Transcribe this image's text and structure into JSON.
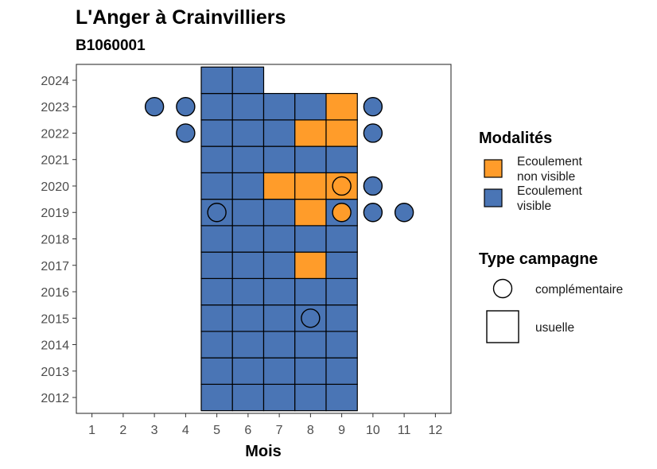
{
  "chart_data": {
    "type": "heatmap",
    "title": "L'Anger à Crainvilliers",
    "subtitle": "B1060001",
    "xlabel": "Mois",
    "ylabel": "",
    "x_ticks": [
      1,
      2,
      3,
      4,
      5,
      6,
      7,
      8,
      9,
      10,
      11,
      12
    ],
    "y_ticks": [
      2012,
      2013,
      2014,
      2015,
      2016,
      2017,
      2018,
      2019,
      2020,
      2021,
      2022,
      2023,
      2024
    ],
    "xlim": [
      0.5,
      12.5
    ],
    "ylim": [
      2011.4,
      2024.6
    ],
    "colors": {
      "Ecoulement non visible": "#FF9C2A",
      "Ecoulement visible": "#4A75B5"
    },
    "legend_fill": {
      "title": "Modalités",
      "items": [
        {
          "label_lines": [
            "Ecoulement",
            "non visible"
          ],
          "color": "#FF9C2A"
        },
        {
          "label_lines": [
            "Ecoulement",
            "visible"
          ],
          "color": "#4A75B5"
        }
      ]
    },
    "legend_shape": {
      "title": "Type campagne",
      "items": [
        {
          "label": "complémentaire",
          "shape": "circle"
        },
        {
          "label": "usuelle",
          "shape": "square"
        }
      ]
    },
    "usuelle": [
      {
        "year": 2012,
        "month": 5,
        "modalite": "Ecoulement visible"
      },
      {
        "year": 2012,
        "month": 6,
        "modalite": "Ecoulement visible"
      },
      {
        "year": 2012,
        "month": 7,
        "modalite": "Ecoulement visible"
      },
      {
        "year": 2012,
        "month": 8,
        "modalite": "Ecoulement visible"
      },
      {
        "year": 2012,
        "month": 9,
        "modalite": "Ecoulement visible"
      },
      {
        "year": 2013,
        "month": 5,
        "modalite": "Ecoulement visible"
      },
      {
        "year": 2013,
        "month": 6,
        "modalite": "Ecoulement visible"
      },
      {
        "year": 2013,
        "month": 7,
        "modalite": "Ecoulement visible"
      },
      {
        "year": 2013,
        "month": 8,
        "modalite": "Ecoulement visible"
      },
      {
        "year": 2013,
        "month": 9,
        "modalite": "Ecoulement visible"
      },
      {
        "year": 2014,
        "month": 5,
        "modalite": "Ecoulement visible"
      },
      {
        "year": 2014,
        "month": 6,
        "modalite": "Ecoulement visible"
      },
      {
        "year": 2014,
        "month": 7,
        "modalite": "Ecoulement visible"
      },
      {
        "year": 2014,
        "month": 8,
        "modalite": "Ecoulement visible"
      },
      {
        "year": 2014,
        "month": 9,
        "modalite": "Ecoulement visible"
      },
      {
        "year": 2015,
        "month": 5,
        "modalite": "Ecoulement visible"
      },
      {
        "year": 2015,
        "month": 6,
        "modalite": "Ecoulement visible"
      },
      {
        "year": 2015,
        "month": 7,
        "modalite": "Ecoulement visible"
      },
      {
        "year": 2015,
        "month": 8,
        "modalite": "Ecoulement visible"
      },
      {
        "year": 2015,
        "month": 9,
        "modalite": "Ecoulement visible"
      },
      {
        "year": 2016,
        "month": 5,
        "modalite": "Ecoulement visible"
      },
      {
        "year": 2016,
        "month": 6,
        "modalite": "Ecoulement visible"
      },
      {
        "year": 2016,
        "month": 7,
        "modalite": "Ecoulement visible"
      },
      {
        "year": 2016,
        "month": 8,
        "modalite": "Ecoulement visible"
      },
      {
        "year": 2016,
        "month": 9,
        "modalite": "Ecoulement visible"
      },
      {
        "year": 2017,
        "month": 5,
        "modalite": "Ecoulement visible"
      },
      {
        "year": 2017,
        "month": 6,
        "modalite": "Ecoulement visible"
      },
      {
        "year": 2017,
        "month": 7,
        "modalite": "Ecoulement visible"
      },
      {
        "year": 2017,
        "month": 8,
        "modalite": "Ecoulement non visible"
      },
      {
        "year": 2017,
        "month": 9,
        "modalite": "Ecoulement visible"
      },
      {
        "year": 2018,
        "month": 5,
        "modalite": "Ecoulement visible"
      },
      {
        "year": 2018,
        "month": 6,
        "modalite": "Ecoulement visible"
      },
      {
        "year": 2018,
        "month": 7,
        "modalite": "Ecoulement visible"
      },
      {
        "year": 2018,
        "month": 8,
        "modalite": "Ecoulement visible"
      },
      {
        "year": 2018,
        "month": 9,
        "modalite": "Ecoulement visible"
      },
      {
        "year": 2019,
        "month": 5,
        "modalite": "Ecoulement visible"
      },
      {
        "year": 2019,
        "month": 6,
        "modalite": "Ecoulement visible"
      },
      {
        "year": 2019,
        "month": 7,
        "modalite": "Ecoulement visible"
      },
      {
        "year": 2019,
        "month": 8,
        "modalite": "Ecoulement non visible"
      },
      {
        "year": 2019,
        "month": 9,
        "modalite": "Ecoulement visible"
      },
      {
        "year": 2020,
        "month": 5,
        "modalite": "Ecoulement visible"
      },
      {
        "year": 2020,
        "month": 6,
        "modalite": "Ecoulement visible"
      },
      {
        "year": 2020,
        "month": 7,
        "modalite": "Ecoulement non visible"
      },
      {
        "year": 2020,
        "month": 8,
        "modalite": "Ecoulement non visible"
      },
      {
        "year": 2020,
        "month": 9,
        "modalite": "Ecoulement non visible"
      },
      {
        "year": 2021,
        "month": 5,
        "modalite": "Ecoulement visible"
      },
      {
        "year": 2021,
        "month": 6,
        "modalite": "Ecoulement visible"
      },
      {
        "year": 2021,
        "month": 7,
        "modalite": "Ecoulement visible"
      },
      {
        "year": 2021,
        "month": 8,
        "modalite": "Ecoulement visible"
      },
      {
        "year": 2021,
        "month": 9,
        "modalite": "Ecoulement visible"
      },
      {
        "year": 2022,
        "month": 5,
        "modalite": "Ecoulement visible"
      },
      {
        "year": 2022,
        "month": 6,
        "modalite": "Ecoulement visible"
      },
      {
        "year": 2022,
        "month": 7,
        "modalite": "Ecoulement visible"
      },
      {
        "year": 2022,
        "month": 8,
        "modalite": "Ecoulement non visible"
      },
      {
        "year": 2022,
        "month": 9,
        "modalite": "Ecoulement non visible"
      },
      {
        "year": 2023,
        "month": 5,
        "modalite": "Ecoulement visible"
      },
      {
        "year": 2023,
        "month": 6,
        "modalite": "Ecoulement visible"
      },
      {
        "year": 2023,
        "month": 7,
        "modalite": "Ecoulement visible"
      },
      {
        "year": 2023,
        "month": 8,
        "modalite": "Ecoulement visible"
      },
      {
        "year": 2023,
        "month": 9,
        "modalite": "Ecoulement non visible"
      },
      {
        "year": 2024,
        "month": 5,
        "modalite": "Ecoulement visible"
      },
      {
        "year": 2024,
        "month": 6,
        "modalite": "Ecoulement visible"
      }
    ],
    "complementaire": [
      {
        "year": 2015,
        "month": 8,
        "modalite": "Ecoulement visible"
      },
      {
        "year": 2019,
        "month": 5,
        "modalite": "Ecoulement visible"
      },
      {
        "year": 2019,
        "month": 9,
        "modalite": "Ecoulement non visible"
      },
      {
        "year": 2019,
        "month": 10,
        "modalite": "Ecoulement visible"
      },
      {
        "year": 2019,
        "month": 11,
        "modalite": "Ecoulement visible"
      },
      {
        "year": 2020,
        "month": 9,
        "modalite": "Ecoulement non visible"
      },
      {
        "year": 2020,
        "month": 10,
        "modalite": "Ecoulement visible"
      },
      {
        "year": 2022,
        "month": 4,
        "modalite": "Ecoulement visible"
      },
      {
        "year": 2022,
        "month": 10,
        "modalite": "Ecoulement visible"
      },
      {
        "year": 2023,
        "month": 3,
        "modalite": "Ecoulement visible"
      },
      {
        "year": 2023,
        "month": 4,
        "modalite": "Ecoulement visible"
      },
      {
        "year": 2023,
        "month": 10,
        "modalite": "Ecoulement visible"
      }
    ],
    "grid": false,
    "legend_position": "right"
  }
}
